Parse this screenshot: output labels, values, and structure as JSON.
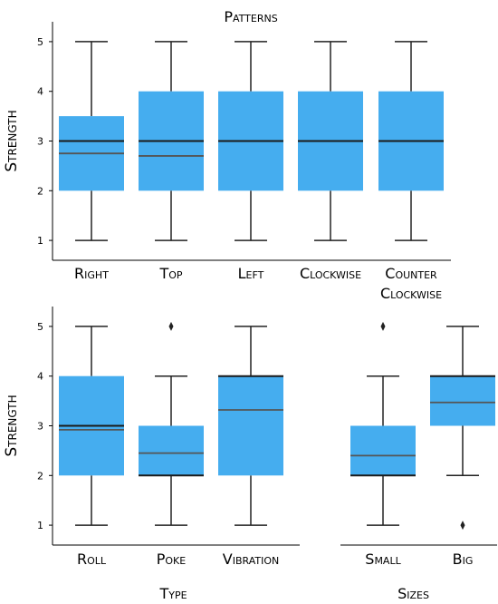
{
  "colors": {
    "box": "#45ADEF",
    "median": "#1a1a1a",
    "mean": "#555555",
    "whisker": "#222222"
  },
  "chart_data": [
    {
      "type": "box",
      "title": "Patterns",
      "ylabel": "Strength",
      "ylim": [
        0.6,
        5.4
      ],
      "yticks": [
        1,
        2,
        3,
        4,
        5
      ],
      "grid": false,
      "categories": [
        "Right",
        "Top",
        "Left",
        "Clockwise",
        "Counter Clockwise"
      ],
      "stats": [
        {
          "min": 1,
          "q1": 2,
          "median": 3,
          "q3": 3.5,
          "max": 5,
          "mean": 2.75,
          "outliers": []
        },
        {
          "min": 1,
          "q1": 2,
          "median": 3,
          "q3": 4,
          "max": 5,
          "mean": 2.7,
          "outliers": []
        },
        {
          "min": 1,
          "q1": 2,
          "median": 3,
          "q3": 4,
          "max": 5,
          "mean": 3.0,
          "outliers": []
        },
        {
          "min": 1,
          "q1": 2,
          "median": 3,
          "q3": 4,
          "max": 5,
          "mean": 3.0,
          "outliers": []
        },
        {
          "min": 1,
          "q1": 2,
          "median": 3,
          "q3": 4,
          "max": 5,
          "mean": 3.0,
          "outliers": []
        }
      ]
    },
    {
      "type": "box",
      "title": "",
      "xlabel": "Type",
      "ylabel": "Strength",
      "ylim": [
        0.6,
        5.4
      ],
      "yticks": [
        1,
        2,
        3,
        4,
        5
      ],
      "grid": false,
      "categories": [
        "Roll",
        "Poke",
        "Vibration"
      ],
      "stats": [
        {
          "min": 1,
          "q1": 2,
          "median": 3,
          "q3": 4,
          "max": 5,
          "mean": 2.92,
          "outliers": []
        },
        {
          "min": 1,
          "q1": 2,
          "median": 2,
          "q3": 3,
          "max": 4,
          "mean": 2.45,
          "outliers": [
            5
          ]
        },
        {
          "min": 1,
          "q1": 2,
          "median": 4,
          "q3": 4,
          "max": 5,
          "mean": 3.32,
          "outliers": []
        }
      ]
    },
    {
      "type": "box",
      "title": "",
      "xlabel": "Sizes",
      "ylim": [
        0.6,
        5.4
      ],
      "grid": false,
      "categories": [
        "Small",
        "Big"
      ],
      "stats": [
        {
          "min": 1,
          "q1": 2,
          "median": 2,
          "q3": 3,
          "max": 4,
          "mean": 2.4,
          "outliers": [
            5
          ]
        },
        {
          "min": 2,
          "q1": 3,
          "median": 4,
          "q3": 4,
          "max": 5,
          "mean": 3.47,
          "outliers": [
            1
          ]
        }
      ]
    }
  ]
}
